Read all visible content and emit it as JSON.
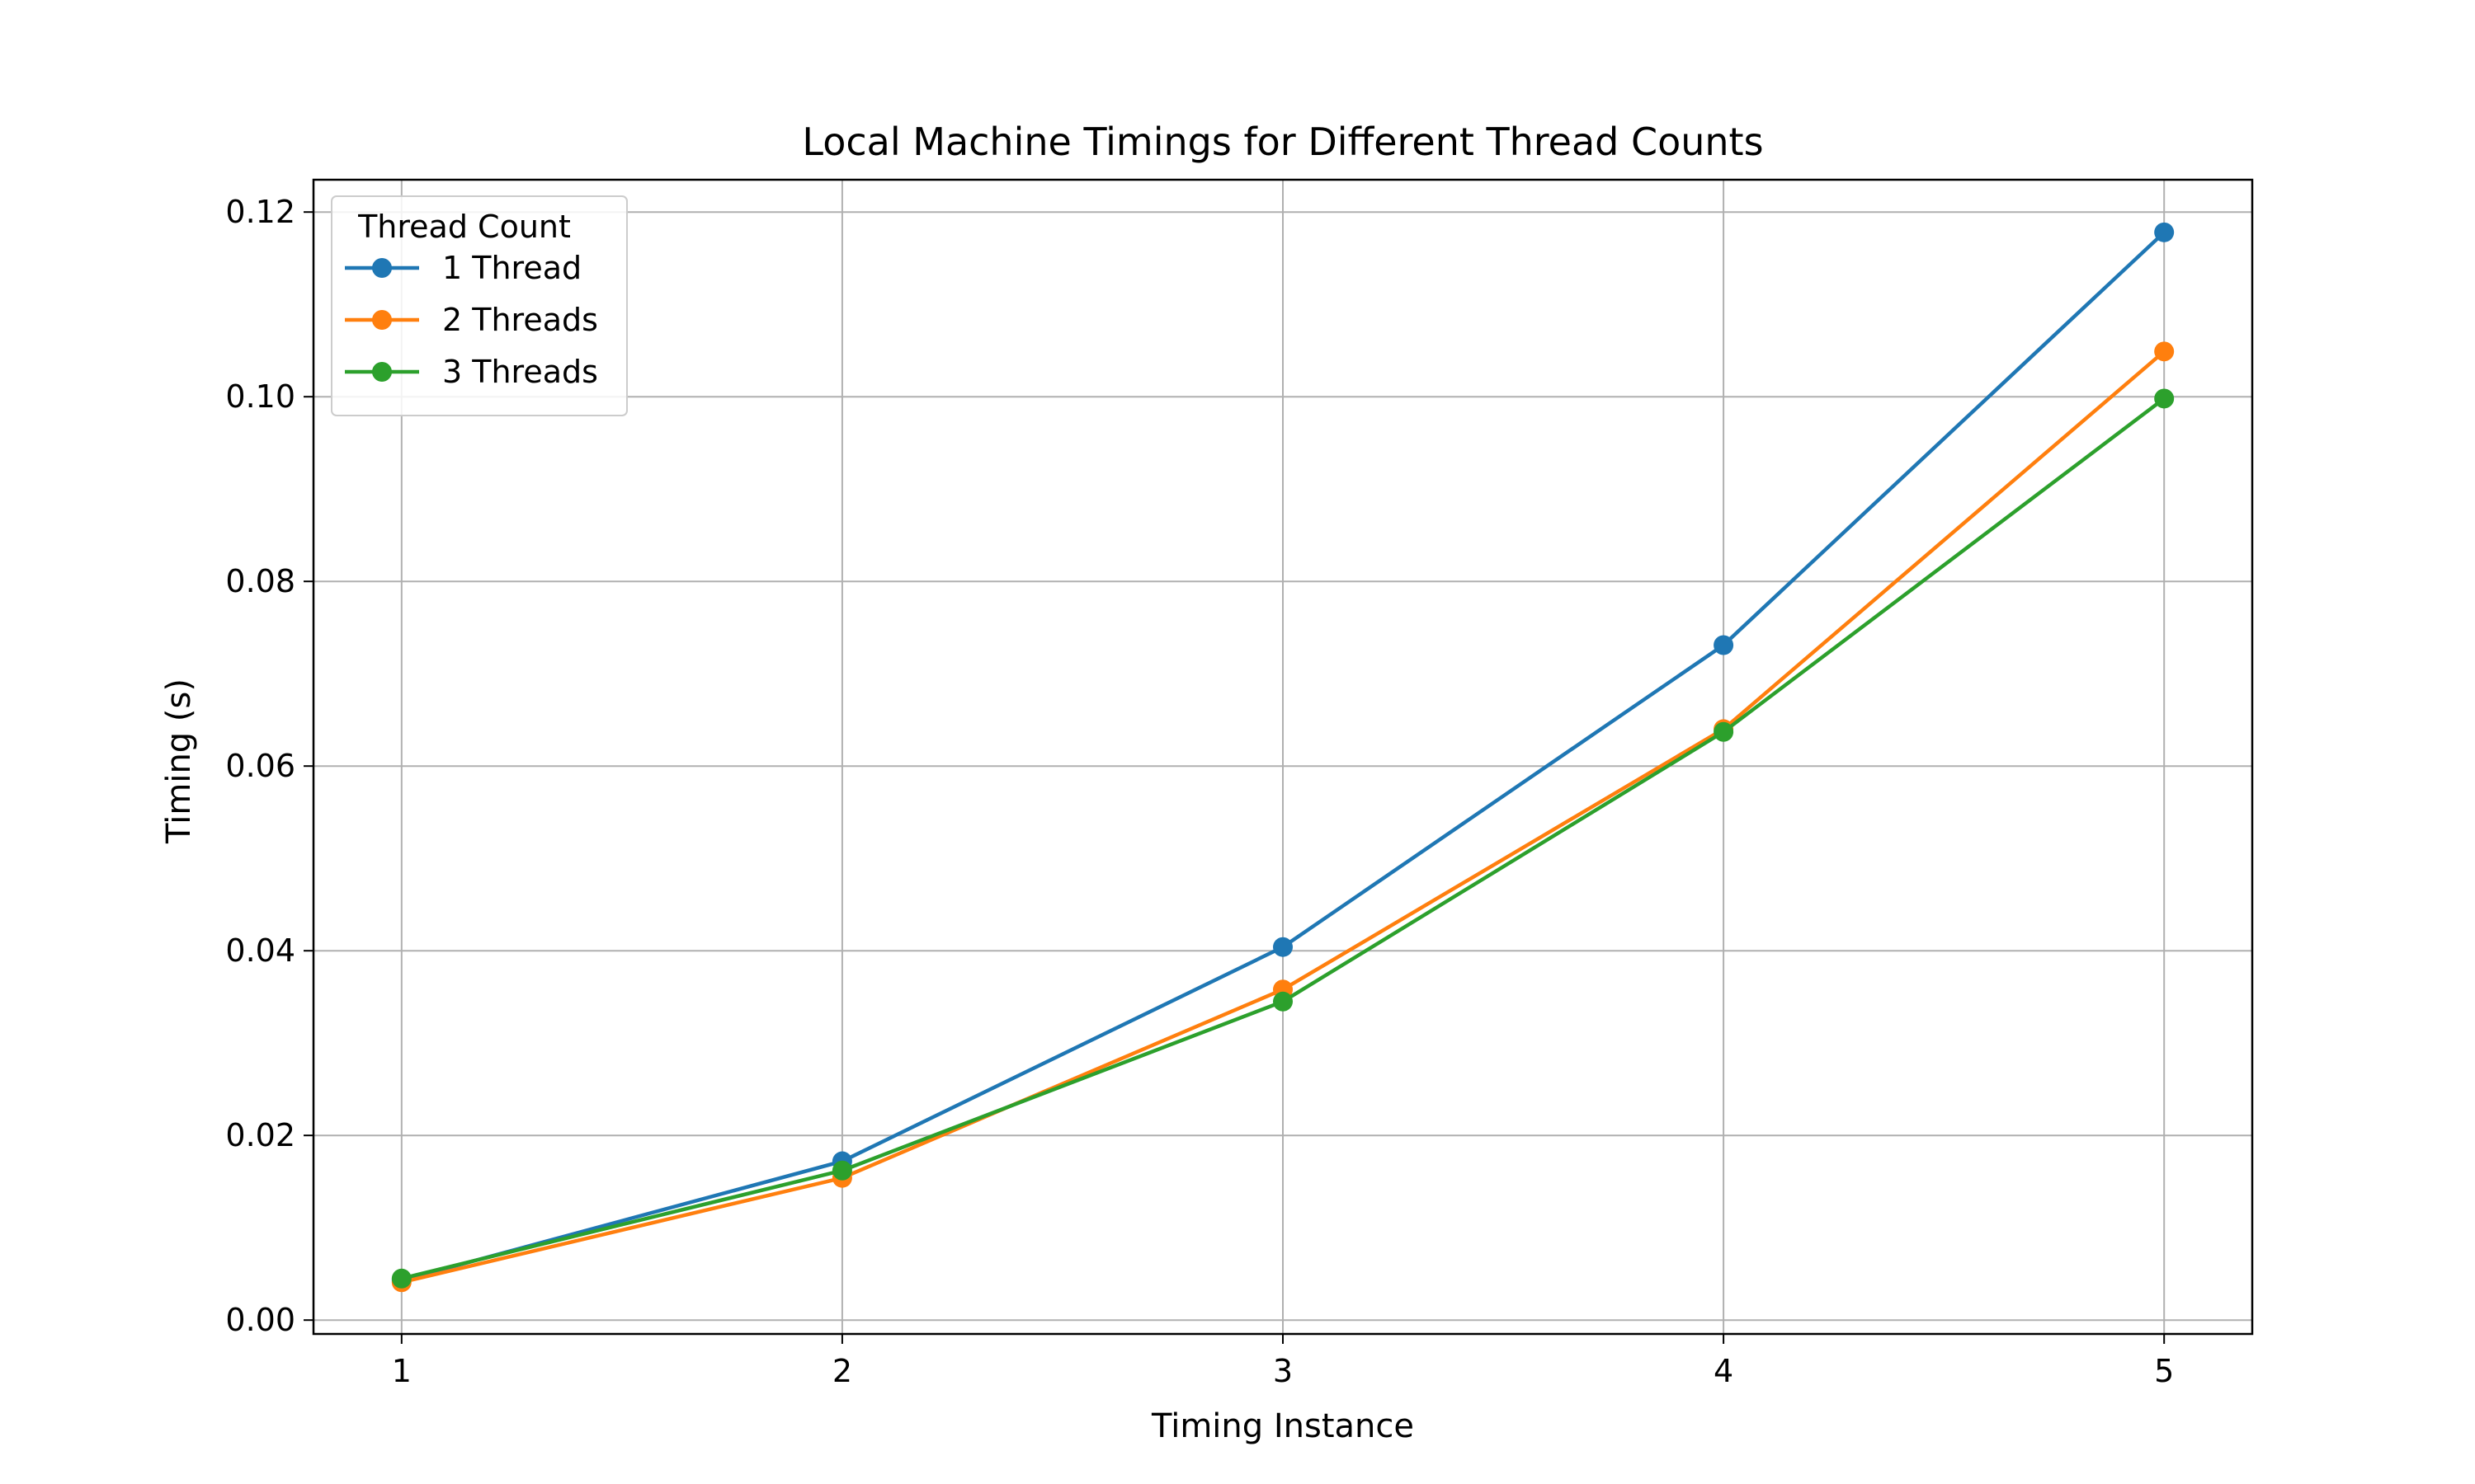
{
  "chart_data": {
    "type": "line",
    "title": "Local Machine Timings for Different Thread Counts",
    "xlabel": "Timing Instance",
    "ylabel": "Timing (s)",
    "x": [
      1,
      2,
      3,
      4,
      5
    ],
    "xlim": [
      0.8,
      5.2
    ],
    "ylim": [
      -0.0015,
      0.1235
    ],
    "xticks": [
      "1",
      "2",
      "3",
      "4",
      "5"
    ],
    "yticks": [
      "0.00",
      "0.02",
      "0.04",
      "0.06",
      "0.08",
      "0.10",
      "0.12"
    ],
    "grid": true,
    "legend": {
      "title": "Thread Count",
      "position": "top-left"
    },
    "series": [
      {
        "name": "1 Thread",
        "color": "#1f77b4",
        "marker": "circle",
        "values": [
          0.0043,
          0.0172,
          0.0404,
          0.0731,
          0.1178
        ]
      },
      {
        "name": "2 Threads",
        "color": "#ff7f0e",
        "marker": "circle",
        "values": [
          0.0041,
          0.0154,
          0.0358,
          0.064,
          0.1049
        ]
      },
      {
        "name": "3 Threads",
        "color": "#2ca02c",
        "marker": "circle",
        "values": [
          0.0045,
          0.0162,
          0.0345,
          0.0637,
          0.0998
        ]
      }
    ]
  }
}
